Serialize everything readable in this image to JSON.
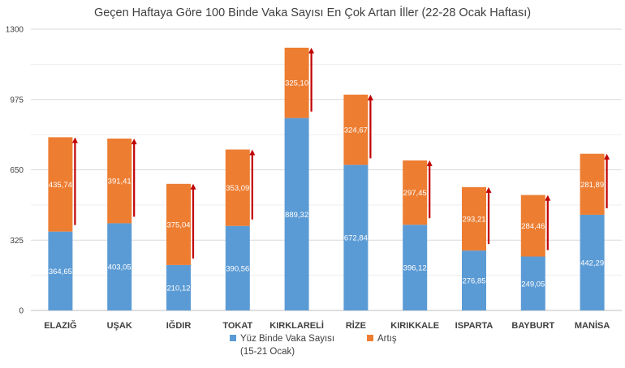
{
  "chart_data": {
    "type": "bar",
    "stacked": true,
    "title": "Geçen Haftaya Göre 100 Binde Vaka Sayısı En Çok Artan İller (22-28 Ocak Haftası)",
    "categories": [
      "ELAZIĞ",
      "UŞAK",
      "IĞDIR",
      "TOKAT",
      "KIRKLARELİ",
      "RİZE",
      "KIRIKKALE",
      "ISPARTA",
      "BAYBURT",
      "MANİSA"
    ],
    "series": [
      {
        "name": "Yüz Binde Vaka Sayısı (15-21 Ocak)",
        "name_lines": [
          "Yüz Binde Vaka Sayısı",
          "(15-21 Ocak)"
        ],
        "color": "#5b9bd5",
        "values": [
          364.65,
          403.05,
          210.12,
          390.56,
          889.32,
          672.84,
          396.12,
          276.85,
          249.05,
          442.29
        ],
        "labels": [
          "364,65",
          "403,05",
          "210,12",
          "390,56",
          "889,32",
          "672,84",
          "396,12",
          "276,85",
          "249,05",
          "442,29"
        ]
      },
      {
        "name": "Artış",
        "name_lines": [
          "Artış"
        ],
        "color": "#ed7d31",
        "values": [
          435.74,
          391.41,
          375.04,
          353.09,
          325.1,
          324.67,
          297.45,
          293.21,
          284.46,
          281.89
        ],
        "labels": [
          "435,74",
          "391,41",
          "375,04",
          "353,09",
          "325,10",
          "324,67",
          "297,45",
          "293,21",
          "284,46",
          "281,89"
        ]
      }
    ],
    "ylim": [
      0,
      1300
    ],
    "yticks": [
      0,
      325,
      650,
      975,
      1300
    ],
    "grid": true,
    "arrow_color": "#c00000",
    "legend_position": "bottom"
  }
}
